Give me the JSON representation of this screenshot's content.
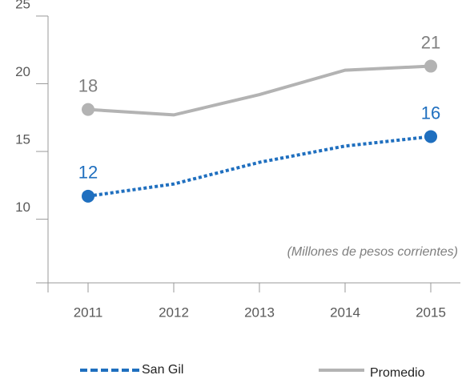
{
  "chart_data": {
    "type": "line",
    "categories": [
      "2011",
      "2012",
      "2013",
      "2014",
      "2015"
    ],
    "series": [
      {
        "name": "San Gil",
        "color": "#1f6fbf",
        "style": "dotted",
        "values": [
          11.7,
          12.6,
          14.2,
          15.4,
          16.1
        ],
        "value_labels": [
          "12",
          null,
          null,
          null,
          "16"
        ]
      },
      {
        "name": "Promedio",
        "color": "#b3b3b3",
        "style": "solid",
        "values": [
          18.1,
          17.7,
          19.2,
          21.0,
          21.3
        ],
        "value_labels": [
          "18",
          null,
          null,
          null,
          "21"
        ]
      }
    ],
    "annotation": "(Millones de pesos corrientes)",
    "ylim": [
      5.3,
      25
    ],
    "yticks": [
      10,
      15,
      20,
      25
    ],
    "grid": false
  }
}
